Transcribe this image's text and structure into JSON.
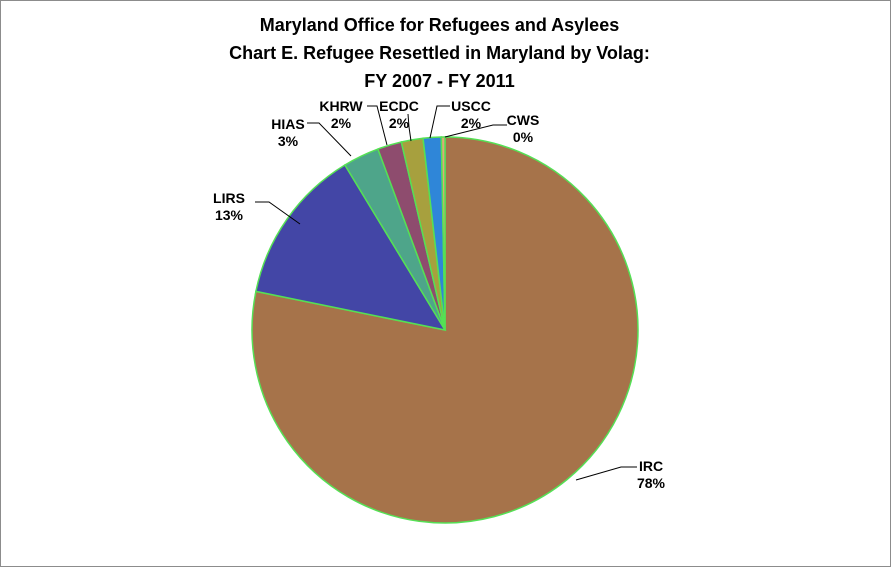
{
  "chart_data": {
    "type": "pie",
    "title_lines": [
      "Maryland Office for Refugees and Asylees",
      "Chart E.  Refugee Resettled in Maryland by Volag:",
      "FY 2007 - FY 2011"
    ],
    "slices": [
      {
        "category": "IRC",
        "percent_label": "78%",
        "value": 77.5,
        "color": "#A6734A"
      },
      {
        "category": "LIRS",
        "percent_label": "13%",
        "value": 13.0,
        "color": "#4346A6"
      },
      {
        "category": "HIAS",
        "percent_label": "3%",
        "value": 3.0,
        "color": "#4EA58A"
      },
      {
        "category": "KHRW",
        "percent_label": "2%",
        "value": 2.0,
        "color": "#8E4C6E"
      },
      {
        "category": "ECDC",
        "percent_label": "2%",
        "value": 1.8,
        "color": "#A7A03E"
      },
      {
        "category": "USCC",
        "percent_label": "2%",
        "value": 1.5,
        "color": "#2F86D8"
      },
      {
        "category": "CWS",
        "percent_label": "0%",
        "value": 0.3,
        "color": "#E0A878"
      }
    ],
    "slice_border_color": "#55E055",
    "legend": "none"
  }
}
